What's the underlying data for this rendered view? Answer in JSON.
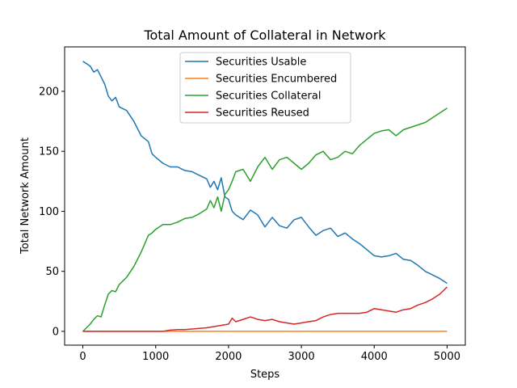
{
  "chart_data": {
    "type": "line",
    "title": "Total Amount of Collateral in Network",
    "xlabel": "Steps",
    "ylabel": "Total Network Amount",
    "xlim": [
      -250,
      5250
    ],
    "ylim": [
      -11.5,
      237
    ],
    "xticks": [
      0,
      1000,
      2000,
      3000,
      4000,
      5000
    ],
    "yticks": [
      0,
      50,
      100,
      150,
      200
    ],
    "grid": false,
    "legend_position": "top-center",
    "series": [
      {
        "name": "Securities Usable",
        "color": "#1f77b4",
        "x": [
          0,
          100,
          150,
          200,
          300,
          350,
          400,
          450,
          500,
          600,
          700,
          800,
          900,
          950,
          1000,
          1100,
          1200,
          1300,
          1400,
          1500,
          1600,
          1700,
          1750,
          1800,
          1850,
          1900,
          1950,
          2000,
          2050,
          2100,
          2200,
          2300,
          2400,
          2500,
          2600,
          2700,
          2800,
          2900,
          3000,
          3100,
          3200,
          3300,
          3400,
          3500,
          3600,
          3700,
          3800,
          3900,
          4000,
          4100,
          4200,
          4300,
          4400,
          4500,
          4600,
          4700,
          4800,
          4900,
          5000
        ],
        "values": [
          225,
          221,
          216,
          218,
          206,
          196,
          192,
          195,
          187,
          184,
          175,
          163,
          158,
          148,
          145,
          140,
          137,
          137,
          134,
          133,
          130,
          127,
          120,
          125,
          118,
          128,
          112,
          110,
          100,
          97,
          93,
          101,
          97,
          87,
          95,
          88,
          86,
          93,
          95,
          87,
          80,
          84,
          86,
          79,
          82,
          77,
          73,
          68,
          63,
          62,
          63,
          65,
          60,
          59,
          55,
          50,
          47,
          44,
          40
        ]
      },
      {
        "name": "Securities Encumbered",
        "color": "#ff7f0e",
        "x": [
          0,
          5000
        ],
        "values": [
          0,
          0
        ]
      },
      {
        "name": "Securities Collateral",
        "color": "#2ca02c",
        "x": [
          0,
          50,
          100,
          150,
          200,
          250,
          300,
          350,
          400,
          450,
          500,
          600,
          700,
          800,
          900,
          950,
          1000,
          1100,
          1200,
          1300,
          1400,
          1500,
          1600,
          1700,
          1750,
          1800,
          1850,
          1900,
          1950,
          2000,
          2050,
          2100,
          2200,
          2300,
          2400,
          2500,
          2600,
          2700,
          2800,
          2900,
          3000,
          3100,
          3200,
          3300,
          3400,
          3500,
          3600,
          3700,
          3800,
          3900,
          4000,
          4100,
          4200,
          4300,
          4400,
          4500,
          4600,
          4700,
          4800,
          4900,
          5000
        ],
        "values": [
          0,
          3,
          6,
          10,
          13,
          12,
          22,
          31,
          34,
          33,
          39,
          45,
          54,
          66,
          80,
          82,
          85,
          89,
          89,
          91,
          94,
          95,
          98,
          102,
          109,
          103,
          112,
          100,
          114,
          118,
          125,
          133,
          135,
          125,
          137,
          145,
          135,
          143,
          145,
          140,
          135,
          140,
          147,
          150,
          143,
          145,
          150,
          148,
          155,
          160,
          165,
          167,
          168,
          163,
          168,
          170,
          172,
          174,
          178,
          182,
          186
        ]
      },
      {
        "name": "Securities Reused",
        "color": "#d62728",
        "x": [
          0,
          500,
          1000,
          1100,
          1200,
          1300,
          1400,
          1500,
          1600,
          1700,
          1800,
          1900,
          2000,
          2050,
          2100,
          2200,
          2300,
          2400,
          2500,
          2600,
          2700,
          2800,
          2900,
          3000,
          3100,
          3200,
          3300,
          3400,
          3500,
          3600,
          3700,
          3800,
          3900,
          4000,
          4100,
          4200,
          4300,
          4400,
          4500,
          4600,
          4700,
          4800,
          4900,
          5000
        ],
        "values": [
          0,
          0,
          0,
          0,
          1,
          1.5,
          1.5,
          2,
          2.5,
          3,
          4,
          5,
          6,
          11,
          8,
          10,
          12,
          10,
          9,
          10,
          8,
          7,
          6,
          7,
          8,
          9,
          12,
          14,
          15,
          15,
          15,
          15,
          16,
          19,
          18,
          17,
          16,
          18,
          19,
          22,
          24,
          27,
          31,
          37
        ]
      }
    ]
  }
}
